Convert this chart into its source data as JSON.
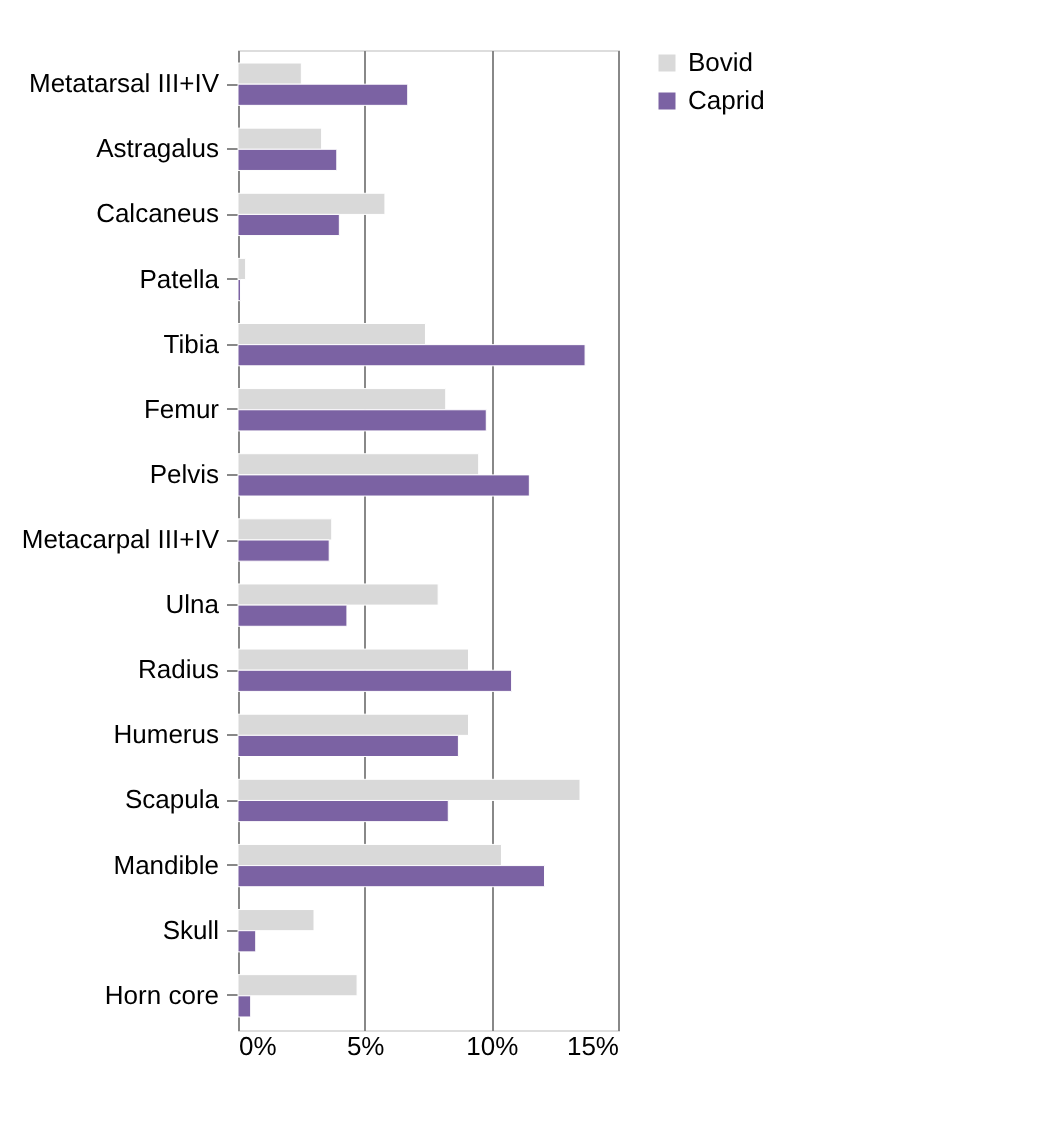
{
  "chart_data": {
    "type": "bar",
    "orientation": "horizontal",
    "categories": [
      "Metatarsal III+IV",
      "Astragalus",
      "Calcaneus",
      "Patella",
      "Tibia",
      "Femur",
      "Pelvis",
      "Metacarpal III+IV",
      "Ulna",
      "Radius",
      "Humerus",
      "Scapula",
      "Mandible",
      "Skull",
      "Horn core"
    ],
    "series": [
      {
        "name": "Bovid",
        "color": "#d9d9d9",
        "values": [
          2.5,
          3.3,
          5.8,
          0.3,
          7.4,
          8.2,
          9.5,
          3.7,
          7.9,
          9.1,
          9.1,
          13.5,
          10.4,
          3.0,
          4.7
        ]
      },
      {
        "name": "Caprid",
        "color": "#7b62a3",
        "values": [
          6.7,
          3.9,
          4.0,
          0.1,
          13.7,
          9.8,
          11.5,
          3.6,
          4.3,
          10.8,
          8.7,
          8.3,
          12.1,
          0.7,
          0.5
        ]
      }
    ],
    "xlim": [
      0,
      15
    ],
    "xticks": [
      {
        "value": 0,
        "label": "0%"
      },
      {
        "value": 5,
        "label": "5%"
      },
      {
        "value": 10,
        "label": "10%"
      },
      {
        "value": 15,
        "label": "15%"
      }
    ],
    "grid": "x",
    "legend": "right"
  }
}
